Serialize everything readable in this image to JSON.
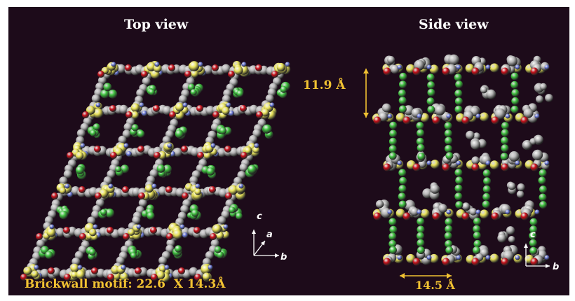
{
  "figure": {
    "panels": [
      {
        "title": "Top view"
      },
      {
        "title": "Side view"
      }
    ],
    "caption": "Brickwall motif: 22.6  X 14.3Å",
    "dimensions": {
      "height": "11.9 Å",
      "width": "14.5  Å"
    },
    "axes_top": {
      "c": "c",
      "a": "a",
      "b": "b"
    },
    "axes_side": {
      "c": "c",
      "b": "b"
    },
    "colors": {
      "background": "#1d0b1a",
      "yellow": "#e8e25a",
      "green": "#3fc23f",
      "red": "#c8101a",
      "gray": "#b4b4b4",
      "blue": "#6a78d8",
      "label_gold": "#f1c232"
    }
  }
}
